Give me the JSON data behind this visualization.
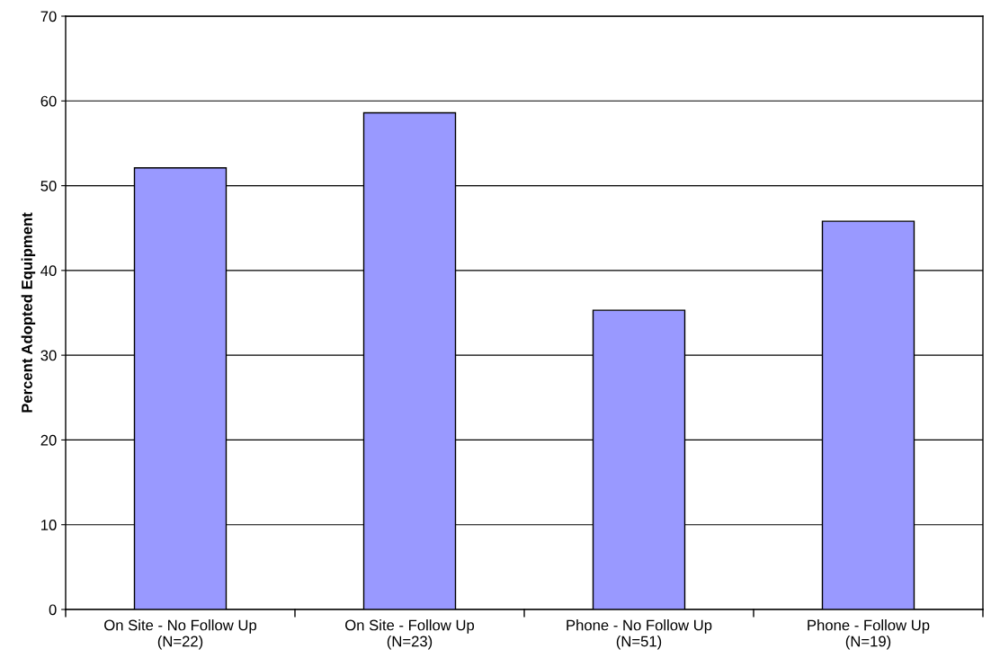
{
  "chart_data": {
    "type": "bar",
    "ylabel": "Percent Adopted Equipment",
    "categories": [
      "On Site - No Follow Up\n(N=22)",
      "On Site - Follow Up\n(N=23)",
      "Phone - No Follow Up\n(N=51)",
      "Phone - Follow Up\n(N=19)"
    ],
    "values": [
      52.1,
      58.6,
      35.3,
      45.8
    ],
    "color": "#9999ff",
    "ylim": [
      0,
      70
    ],
    "yticks": [
      0,
      10,
      20,
      30,
      40,
      50,
      60,
      70
    ],
    "grid": "y"
  }
}
